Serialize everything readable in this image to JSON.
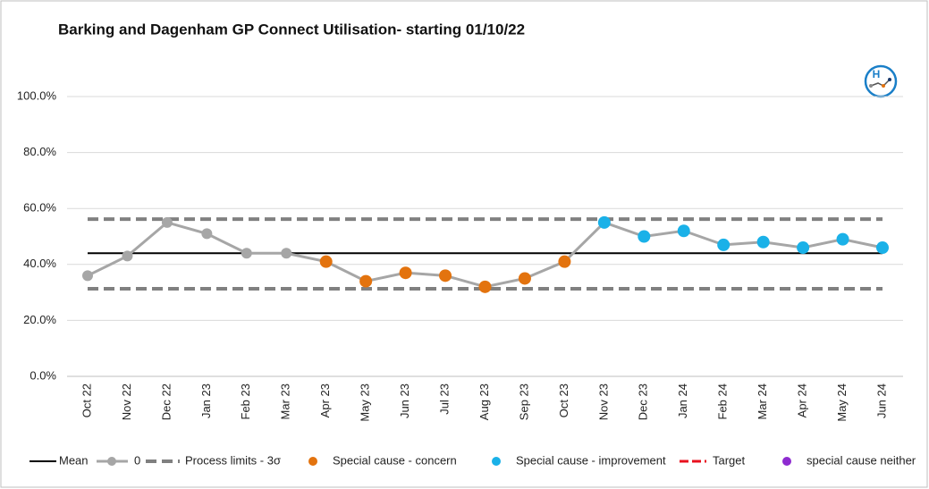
{
  "chart_data": {
    "type": "spc",
    "title": "Barking and Dagenham GP Connect Utilisation- starting 01/10/22",
    "categories": [
      "Oct 22",
      "Nov 22",
      "Dec 22",
      "Jan 23",
      "Feb 23",
      "Mar 23",
      "Apr 23",
      "May 23",
      "Jun 23",
      "Jul 23",
      "Aug 23",
      "Sep 23",
      "Oct 23",
      "Nov 23",
      "Dec 23",
      "Jan 24",
      "Feb 24",
      "Mar 24",
      "Apr 24",
      "May 24",
      "Jun 24"
    ],
    "series": [
      {
        "name": "0",
        "color": "#a6a6a6",
        "values": [
          36,
          43,
          55,
          51,
          44,
          44,
          41,
          34,
          37,
          36,
          32,
          35,
          41,
          55,
          50,
          52,
          47,
          48,
          46,
          49,
          46
        ]
      },
      {
        "name": "Special cause - concern",
        "color": "#e3730e",
        "values": [
          null,
          null,
          null,
          null,
          null,
          null,
          41,
          34,
          37,
          36,
          32,
          35,
          41,
          null,
          null,
          null,
          null,
          null,
          null,
          null,
          null
        ]
      },
      {
        "name": "Special cause  - improvement",
        "color": "#1ab1e8",
        "values": [
          null,
          null,
          null,
          null,
          null,
          null,
          null,
          null,
          null,
          null,
          null,
          null,
          null,
          55,
          50,
          52,
          47,
          48,
          46,
          49,
          46
        ]
      },
      {
        "name": "Target",
        "color": "#e8101e",
        "values": [
          null,
          null,
          null,
          null,
          null,
          null,
          null,
          null,
          null,
          null,
          null,
          null,
          null,
          null,
          null,
          null,
          null,
          null,
          null,
          null,
          null
        ]
      },
      {
        "name": "special cause neither",
        "color": "#8e2bd0",
        "values": [
          null,
          null,
          null,
          null,
          null,
          null,
          null,
          null,
          null,
          null,
          null,
          null,
          null,
          null,
          null,
          null,
          null,
          null,
          null,
          null,
          null
        ]
      }
    ],
    "mean": {
      "name": "Mean",
      "color": "#000000",
      "value": 44
    },
    "process_limits": {
      "name": "Process limits - 3σ",
      "color": "#808080",
      "upper": 56.2,
      "lower": 31.3
    },
    "ylim": [
      0,
      100
    ],
    "yticks": [
      {
        "value": 0,
        "label": "0.0%"
      },
      {
        "value": 20,
        "label": "20.0%"
      },
      {
        "value": 40,
        "label": "40.0%"
      },
      {
        "value": 60,
        "label": "60.0%"
      },
      {
        "value": 80,
        "label": "80.0%"
      },
      {
        "value": 100,
        "label": "100.0%"
      }
    ],
    "grid": true
  }
}
